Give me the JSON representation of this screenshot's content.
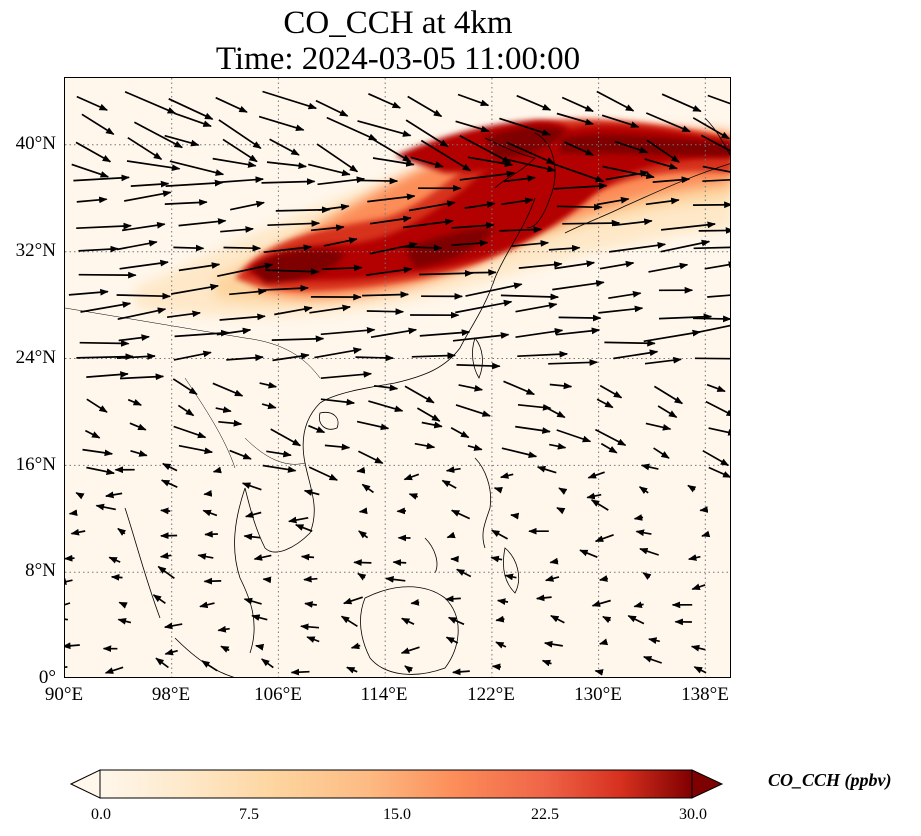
{
  "title": {
    "line1": "CO_CCH at 4km",
    "line2": "Time: 2024-03-05 11:00:00"
  },
  "map": {
    "lon_range": [
      90,
      140
    ],
    "lat_range": [
      0,
      45
    ],
    "x_ticks": [
      "90°E",
      "98°E",
      "106°E",
      "114°E",
      "122°E",
      "130°E",
      "138°E"
    ],
    "y_ticks": [
      "0°",
      "8°N",
      "16°N",
      "24°N",
      "32°N",
      "40°N"
    ],
    "gridlines": "dotted",
    "field": "CO_CCH",
    "plume": "high CO_CCH band from about 103°E to 140°E, 29°N to 42°N",
    "wind_vectors": "shown as black arrows, strong westerlies north of 24°N, weak easterlies in the south"
  },
  "colorbar": {
    "label": "CO_CCH (ppbv)",
    "ticks": [
      "0.0",
      "7.5",
      "15.0",
      "22.5",
      "30.0"
    ],
    "min": 0,
    "max": 30,
    "colormap": "OrRd",
    "extend": "both"
  },
  "colors": {
    "background": "#fff7ec",
    "low": "#fee8c8",
    "mid": "#fc8d59",
    "high": "#b30000",
    "max": "#7f0000",
    "coast": "#000000"
  }
}
